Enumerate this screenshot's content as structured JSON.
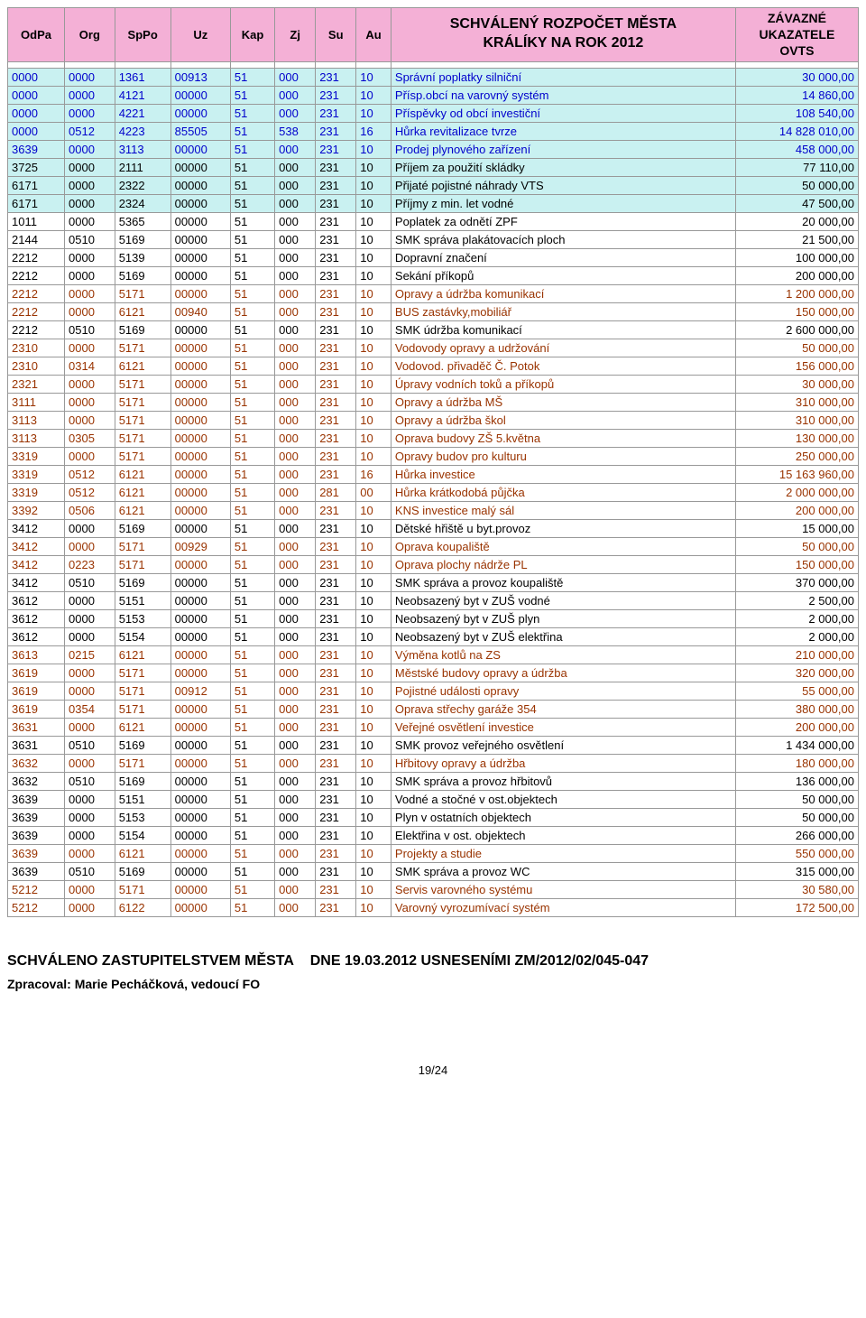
{
  "header": {
    "cols": [
      "OdPa",
      "Org",
      "SpPo",
      "Uz",
      "Kap",
      "Zj",
      "Su",
      "Au"
    ],
    "title_line1": "SCHVÁLENÝ ROZPOČET MĚSTA",
    "title_line2": "KRÁLÍKY  NA ROK 2012",
    "right_line1": "ZÁVAZNÉ",
    "right_line2": "UKAZATELE",
    "right_line3": "OVTS"
  },
  "colors": {
    "header_bg": "#f4b0d6",
    "cyan_bg": "#c9f1f1",
    "brown_text": "#993300",
    "blue_text": "#0000cc",
    "black_text": "#000000"
  },
  "rows": [
    {
      "c": [
        "0000",
        "0000",
        "1361",
        "00913",
        "51",
        "000",
        "231",
        "10"
      ],
      "desc": "Správní poplatky silniční",
      "amt": "30 000,00",
      "bg": "cyan",
      "fg": "blue"
    },
    {
      "c": [
        "0000",
        "0000",
        "4121",
        "00000",
        "51",
        "000",
        "231",
        "10"
      ],
      "desc": "Přísp.obcí na varovný systém",
      "amt": "14 860,00",
      "bg": "cyan",
      "fg": "blue"
    },
    {
      "c": [
        "0000",
        "0000",
        "4221",
        "00000",
        "51",
        "000",
        "231",
        "10"
      ],
      "desc": "Příspěvky od obcí investiční",
      "amt": "108 540,00",
      "bg": "cyan",
      "fg": "blue"
    },
    {
      "c": [
        "0000",
        "0512",
        "4223",
        "85505",
        "51",
        "538",
        "231",
        "16"
      ],
      "desc": "Hůrka revitalizace tvrze",
      "amt": "14 828 010,00",
      "bg": "cyan",
      "fg": "blue"
    },
    {
      "c": [
        "3639",
        "0000",
        "3113",
        "00000",
        "51",
        "000",
        "231",
        "10"
      ],
      "desc": "Prodej plynového zařízení",
      "amt": "458 000,00",
      "bg": "cyan",
      "fg": "blue"
    },
    {
      "c": [
        "3725",
        "0000",
        "2111",
        "00000",
        "51",
        "000",
        "231",
        "10"
      ],
      "desc": "Příjem za použití skládky",
      "amt": "77 110,00",
      "bg": "cyan",
      "fg": "black"
    },
    {
      "c": [
        "6171",
        "0000",
        "2322",
        "00000",
        "51",
        "000",
        "231",
        "10"
      ],
      "desc": "Přijaté pojistné náhrady VTS",
      "amt": "50 000,00",
      "bg": "cyan",
      "fg": "black"
    },
    {
      "c": [
        "6171",
        "0000",
        "2324",
        "00000",
        "51",
        "000",
        "231",
        "10"
      ],
      "desc": "Příjmy z min. let vodné",
      "amt": "47 500,00",
      "bg": "cyan",
      "fg": "black"
    },
    {
      "c": [
        "1011",
        "0000",
        "5365",
        "00000",
        "51",
        "000",
        "231",
        "10"
      ],
      "desc": "Poplatek za odnětí ZPF",
      "amt": "20 000,00",
      "fg": "black"
    },
    {
      "c": [
        "2144",
        "0510",
        "5169",
        "00000",
        "51",
        "000",
        "231",
        "10"
      ],
      "desc": "SMK správa plakátovacích ploch",
      "amt": "21 500,00",
      "fg": "black"
    },
    {
      "c": [
        "2212",
        "0000",
        "5139",
        "00000",
        "51",
        "000",
        "231",
        "10"
      ],
      "desc": "Dopravní značení",
      "amt": "100 000,00",
      "fg": "black"
    },
    {
      "c": [
        "2212",
        "0000",
        "5169",
        "00000",
        "51",
        "000",
        "231",
        "10"
      ],
      "desc": "Sekání příkopů",
      "amt": "200 000,00",
      "fg": "black"
    },
    {
      "c": [
        "2212",
        "0000",
        "5171",
        "00000",
        "51",
        "000",
        "231",
        "10"
      ],
      "desc": "Opravy a údržba komunikací",
      "amt": "1 200 000,00",
      "fg": "brown"
    },
    {
      "c": [
        "2212",
        "0000",
        "6121",
        "00940",
        "51",
        "000",
        "231",
        "10"
      ],
      "desc": "BUS zastávky,mobiliář",
      "amt": "150 000,00",
      "fg": "brown"
    },
    {
      "c": [
        "2212",
        "0510",
        "5169",
        "00000",
        "51",
        "000",
        "231",
        "10"
      ],
      "desc": "SMK údržba komunikací",
      "amt": "2 600 000,00",
      "fg": "black"
    },
    {
      "c": [
        "2310",
        "0000",
        "5171",
        "00000",
        "51",
        "000",
        "231",
        "10"
      ],
      "desc": "Vodovody opravy a udržování",
      "amt": "50 000,00",
      "fg": "brown"
    },
    {
      "c": [
        "2310",
        "0314",
        "6121",
        "00000",
        "51",
        "000",
        "231",
        "10"
      ],
      "desc": "Vodovod. přivaděč Č. Potok",
      "amt": "156 000,00",
      "fg": "brown"
    },
    {
      "c": [
        "2321",
        "0000",
        "5171",
        "00000",
        "51",
        "000",
        "231",
        "10"
      ],
      "desc": "Úpravy vodních toků a příkopů",
      "amt": "30 000,00",
      "fg": "brown"
    },
    {
      "c": [
        "3111",
        "0000",
        "5171",
        "00000",
        "51",
        "000",
        "231",
        "10"
      ],
      "desc": "Opravy a údržba MŠ",
      "amt": "310 000,00",
      "fg": "brown"
    },
    {
      "c": [
        "3113",
        "0000",
        "5171",
        "00000",
        "51",
        "000",
        "231",
        "10"
      ],
      "desc": "Opravy a údržba škol",
      "amt": "310 000,00",
      "fg": "brown"
    },
    {
      "c": [
        "3113",
        "0305",
        "5171",
        "00000",
        "51",
        "000",
        "231",
        "10"
      ],
      "desc": "Oprava budovy ZŠ 5.května",
      "amt": "130 000,00",
      "fg": "brown"
    },
    {
      "c": [
        "3319",
        "0000",
        "5171",
        "00000",
        "51",
        "000",
        "231",
        "10"
      ],
      "desc": "Opravy budov pro kulturu",
      "amt": "250 000,00",
      "fg": "brown"
    },
    {
      "c": [
        "3319",
        "0512",
        "6121",
        "00000",
        "51",
        "000",
        "231",
        "16"
      ],
      "desc": "Hůrka investice",
      "amt": "15 163 960,00",
      "fg": "brown"
    },
    {
      "c": [
        "3319",
        "0512",
        "6121",
        "00000",
        "51",
        "000",
        "281",
        "00"
      ],
      "desc": "Hůrka krátkodobá půjčka",
      "amt": "2 000 000,00",
      "fg": "brown"
    },
    {
      "c": [
        "3392",
        "0506",
        "6121",
        "00000",
        "51",
        "000",
        "231",
        "10"
      ],
      "desc": "KNS investice malý sál",
      "amt": "200 000,00",
      "fg": "brown"
    },
    {
      "c": [
        "3412",
        "0000",
        "5169",
        "00000",
        "51",
        "000",
        "231",
        "10"
      ],
      "desc": "Dětské hřiště u byt.provoz",
      "amt": "15 000,00",
      "fg": "black"
    },
    {
      "c": [
        "3412",
        "0000",
        "5171",
        "00929",
        "51",
        "000",
        "231",
        "10"
      ],
      "desc": "Oprava koupaliště",
      "amt": "50 000,00",
      "fg": "brown"
    },
    {
      "c": [
        "3412",
        "0223",
        "5171",
        "00000",
        "51",
        "000",
        "231",
        "10"
      ],
      "desc": "Oprava plochy nádrže PL",
      "amt": "150 000,00",
      "fg": "brown"
    },
    {
      "c": [
        "3412",
        "0510",
        "5169",
        "00000",
        "51",
        "000",
        "231",
        "10"
      ],
      "desc": "SMK správa a provoz koupaliště",
      "amt": "370 000,00",
      "fg": "black"
    },
    {
      "c": [
        "3612",
        "0000",
        "5151",
        "00000",
        "51",
        "000",
        "231",
        "10"
      ],
      "desc": "Neobsazený byt v ZUŠ vodné",
      "amt": "2 500,00",
      "fg": "black"
    },
    {
      "c": [
        "3612",
        "0000",
        "5153",
        "00000",
        "51",
        "000",
        "231",
        "10"
      ],
      "desc": "Neobsazený byt v ZUŠ plyn",
      "amt": "2 000,00",
      "fg": "black"
    },
    {
      "c": [
        "3612",
        "0000",
        "5154",
        "00000",
        "51",
        "000",
        "231",
        "10"
      ],
      "desc": "Neobsazený byt v ZUŠ elektřina",
      "amt": "2 000,00",
      "fg": "black"
    },
    {
      "c": [
        "3613",
        "0215",
        "6121",
        "00000",
        "51",
        "000",
        "231",
        "10"
      ],
      "desc": "Výměna kotlů na ZS",
      "amt": "210 000,00",
      "fg": "brown"
    },
    {
      "c": [
        "3619",
        "0000",
        "5171",
        "00000",
        "51",
        "000",
        "231",
        "10"
      ],
      "desc": "Městské budovy opravy a údržba",
      "amt": "320 000,00",
      "fg": "brown"
    },
    {
      "c": [
        "3619",
        "0000",
        "5171",
        "00912",
        "51",
        "000",
        "231",
        "10"
      ],
      "desc": "Pojistné události opravy",
      "amt": "55 000,00",
      "fg": "brown"
    },
    {
      "c": [
        "3619",
        "0354",
        "5171",
        "00000",
        "51",
        "000",
        "231",
        "10"
      ],
      "desc": "Oprava střechy garáže 354",
      "amt": "380 000,00",
      "fg": "brown"
    },
    {
      "c": [
        "3631",
        "0000",
        "6121",
        "00000",
        "51",
        "000",
        "231",
        "10"
      ],
      "desc": "Veřejné osvětlení investice",
      "amt": "200 000,00",
      "fg": "brown"
    },
    {
      "c": [
        "3631",
        "0510",
        "5169",
        "00000",
        "51",
        "000",
        "231",
        "10"
      ],
      "desc": "SMK provoz veřejného osvětlení",
      "amt": "1 434 000,00",
      "fg": "black"
    },
    {
      "c": [
        "3632",
        "0000",
        "5171",
        "00000",
        "51",
        "000",
        "231",
        "10"
      ],
      "desc": "Hřbitovy opravy a údržba",
      "amt": "180 000,00",
      "fg": "brown"
    },
    {
      "c": [
        "3632",
        "0510",
        "5169",
        "00000",
        "51",
        "000",
        "231",
        "10"
      ],
      "desc": "SMK správa a provoz hřbitovů",
      "amt": "136 000,00",
      "fg": "black"
    },
    {
      "c": [
        "3639",
        "0000",
        "5151",
        "00000",
        "51",
        "000",
        "231",
        "10"
      ],
      "desc": "Vodné a stočné v ost.objektech",
      "amt": "50 000,00",
      "fg": "black"
    },
    {
      "c": [
        "3639",
        "0000",
        "5153",
        "00000",
        "51",
        "000",
        "231",
        "10"
      ],
      "desc": "Plyn v ostatních objektech",
      "amt": "50 000,00",
      "fg": "black"
    },
    {
      "c": [
        "3639",
        "0000",
        "5154",
        "00000",
        "51",
        "000",
        "231",
        "10"
      ],
      "desc": "Elektřina v ost. objektech",
      "amt": "266 000,00",
      "fg": "black"
    },
    {
      "c": [
        "3639",
        "0000",
        "6121",
        "00000",
        "51",
        "000",
        "231",
        "10"
      ],
      "desc": "Projekty a studie",
      "amt": "550 000,00",
      "fg": "brown"
    },
    {
      "c": [
        "3639",
        "0510",
        "5169",
        "00000",
        "51",
        "000",
        "231",
        "10"
      ],
      "desc": "SMK správa a provoz WC",
      "amt": "315 000,00",
      "fg": "black"
    },
    {
      "c": [
        "5212",
        "0000",
        "5171",
        "00000",
        "51",
        "000",
        "231",
        "10"
      ],
      "desc": "Servis varovného systému",
      "amt": "30 580,00",
      "fg": "brown"
    },
    {
      "c": [
        "5212",
        "0000",
        "6122",
        "00000",
        "51",
        "000",
        "231",
        "10"
      ],
      "desc": "Varovný vyrozumívací systém",
      "amt": "172 500,00",
      "fg": "brown"
    }
  ],
  "footer": {
    "line1_left": "SCHVÁLENO ZASTUPITELSTVEM MĚSTA",
    "line1_right": "DNE 19.03.2012 USNESENÍMI ZM/2012/02/045-047",
    "line2": "Zpracoval: Marie Pecháčková, vedoucí FO",
    "page": "19/24"
  }
}
